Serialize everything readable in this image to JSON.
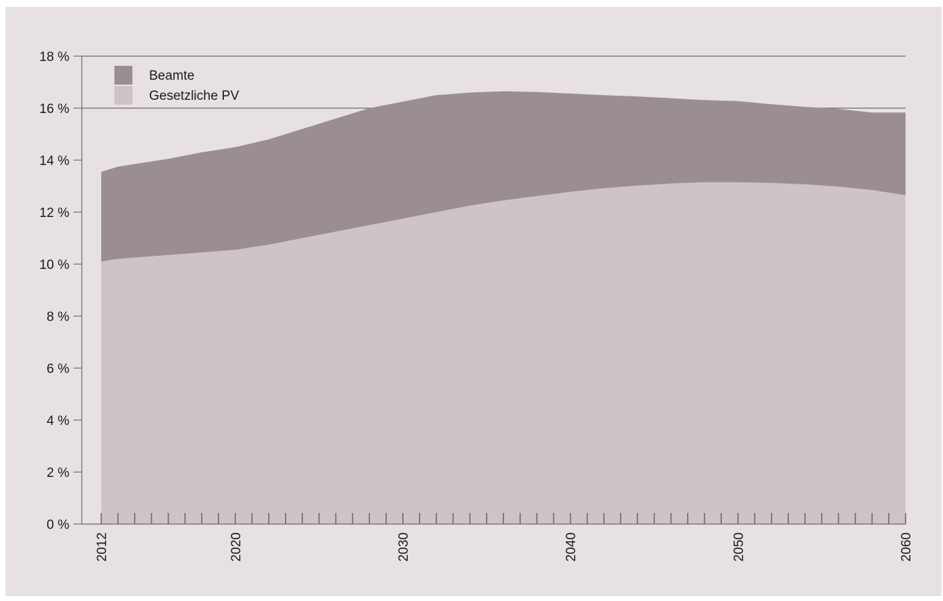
{
  "chart_data": {
    "type": "area",
    "stacked": true,
    "x": [
      2012,
      2013,
      2014,
      2016,
      2018,
      2020,
      2022,
      2024,
      2026,
      2028,
      2030,
      2032,
      2034,
      2036,
      2038,
      2040,
      2042,
      2044,
      2046,
      2048,
      2050,
      2052,
      2054,
      2056,
      2058,
      2060
    ],
    "series": [
      {
        "name": "Gesetzliche PV",
        "color": "#cec3c8",
        "values": [
          10.1,
          10.2,
          10.25,
          10.35,
          10.45,
          10.55,
          10.75,
          11.0,
          11.25,
          11.5,
          11.75,
          12.0,
          12.25,
          12.45,
          12.62,
          12.78,
          12.92,
          13.02,
          13.1,
          13.15,
          13.15,
          13.12,
          13.07,
          12.98,
          12.85,
          12.65
        ]
      },
      {
        "name": "Beamte",
        "color": "#9a8e94",
        "values": [
          3.45,
          3.55,
          3.6,
          3.7,
          3.85,
          3.95,
          4.05,
          4.2,
          4.35,
          4.5,
          4.5,
          4.5,
          4.35,
          4.2,
          4.0,
          3.78,
          3.58,
          3.43,
          3.28,
          3.16,
          3.12,
          3.03,
          2.98,
          2.99,
          2.98,
          3.18
        ]
      }
    ],
    "xticks": [
      "2012",
      "2020",
      "2030",
      "2040",
      "2050",
      "2060"
    ],
    "yticks": [
      "0 %",
      "2 %",
      "4 %",
      "6 %",
      "8 %",
      "10 %",
      "12 %",
      "14 %",
      "16 %",
      "18 %"
    ],
    "ylim": [
      0,
      18
    ],
    "xlim": [
      2012,
      2060
    ],
    "gridlines": [
      16,
      18
    ],
    "legend": "top-left",
    "title": "",
    "xlabel": "",
    "ylabel": ""
  }
}
